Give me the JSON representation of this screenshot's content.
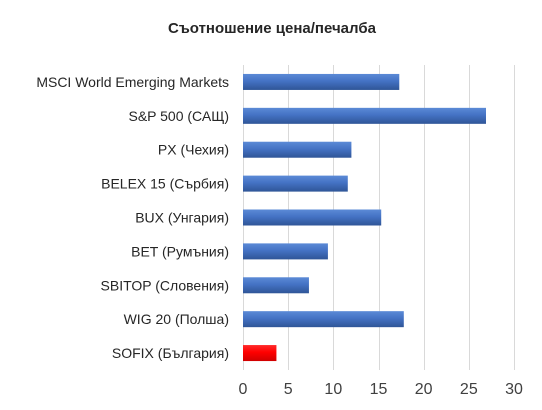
{
  "chart_data": {
    "type": "bar",
    "orientation": "horizontal",
    "title": "Съотношение цена/печалба",
    "xlabel": "",
    "ylabel": "",
    "categories": [
      "MSCI World Emerging Markets",
      "S&P 500 (САЩ)",
      "PX (Чехия)",
      "BELEX 15 (Сърбия)",
      "BUX (Унгария)",
      "BET (Румъния)",
      "SBITOP (Словения)",
      "WIG 20 (Полша)",
      "SOFIX (България)"
    ],
    "values": [
      17.3,
      26.9,
      12.0,
      11.6,
      15.3,
      9.4,
      7.3,
      17.8,
      3.7
    ],
    "bar_colors": [
      "#4472c4",
      "#4472c4",
      "#4472c4",
      "#4472c4",
      "#4472c4",
      "#4472c4",
      "#4472c4",
      "#4472c4",
      "#ff0000"
    ],
    "xlim": [
      0,
      30
    ],
    "xticks": [
      0,
      5,
      10,
      15,
      20,
      25,
      30
    ],
    "grid": "vertical",
    "legend": "none"
  }
}
